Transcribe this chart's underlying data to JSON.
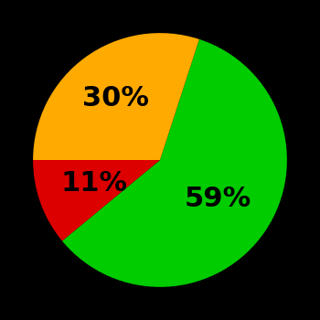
{
  "slices": [
    59,
    11,
    30
  ],
  "colors": [
    "#00cc00",
    "#dd0000",
    "#ffaa00"
  ],
  "labels": [
    "59%",
    "11%",
    "30%"
  ],
  "label_radii": [
    0.55,
    0.55,
    0.6
  ],
  "background_color": "#000000",
  "text_color": "#000000",
  "startangle": 72,
  "fontsize": 22
}
